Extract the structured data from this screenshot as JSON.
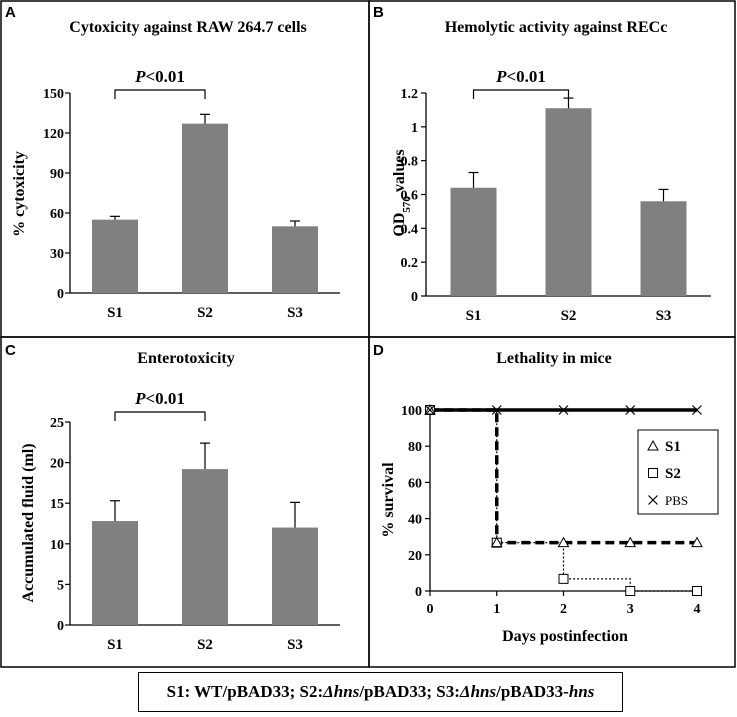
{
  "colors": {
    "bar": "#808080",
    "axis": "#000000",
    "border": "#000000"
  },
  "panel_letters": {
    "a": "A",
    "b": "B",
    "c": "C",
    "d": "D"
  },
  "significance": {
    "italic": "P",
    "text": "<0.01"
  },
  "caption": {
    "s1": "S1: WT/pBAD33; S2: ",
    "d1": "Δhns",
    "s2": "/pBAD33; S3: ",
    "d2": "Δhns",
    "s3": "/pBAD33-",
    "d3": "hns"
  },
  "chart_data": [
    {
      "id": "a",
      "type": "bar",
      "title": "Cytoxicity against RAW 264.7 cells",
      "xlabel": "",
      "ylabel": "% cytoxicity",
      "categories": [
        "S1",
        "S2",
        "S3"
      ],
      "values": [
        55,
        127,
        50
      ],
      "errors": [
        2.5,
        7,
        4
      ],
      "ylim": [
        0,
        150
      ],
      "yticks": [
        0,
        30,
        60,
        90,
        120,
        150
      ],
      "ytick_labels": [
        "0",
        "30",
        "60",
        "90",
        "120",
        "150"
      ],
      "significance": {
        "between": [
          "S1",
          "S2"
        ],
        "label": "P<0.01"
      }
    },
    {
      "id": "b",
      "type": "bar",
      "title": "Hemolytic activity against RECc",
      "xlabel": "",
      "ylabel": "OD570 values",
      "ylabel_parts": {
        "main": "OD",
        "sub": "570",
        "rest": " values"
      },
      "categories": [
        "S1",
        "S2",
        "S3"
      ],
      "values": [
        0.64,
        1.11,
        0.56
      ],
      "errors": [
        0.09,
        0.06,
        0.07
      ],
      "ylim": [
        0,
        1.2
      ],
      "yticks": [
        0,
        0.2,
        0.4,
        0.6,
        0.8,
        1.0,
        1.2
      ],
      "ytick_labels": [
        "0",
        "0.2",
        "0.4",
        "0.6",
        "0.8",
        "1",
        "1.2"
      ],
      "significance": {
        "between": [
          "S1",
          "S2"
        ],
        "label": "P<0.01"
      }
    },
    {
      "id": "c",
      "type": "bar",
      "title": "Enterotoxicity",
      "xlabel": "",
      "ylabel": "Accumulated fluid (ml)",
      "categories": [
        "S1",
        "S2",
        "S3"
      ],
      "values": [
        12.8,
        19.2,
        12.0
      ],
      "errors": [
        2.5,
        3.2,
        3.1
      ],
      "ylim": [
        0,
        25
      ],
      "yticks": [
        0,
        5,
        10,
        15,
        20,
        25
      ],
      "ytick_labels": [
        "0",
        "5",
        "10",
        "15",
        "20",
        "25"
      ],
      "significance": {
        "between": [
          "S1",
          "S2"
        ],
        "label": "P<0.01"
      }
    },
    {
      "id": "d",
      "type": "line",
      "title": "Lethality in mice",
      "xlabel": "Days postinfection",
      "ylabel": "% survival",
      "xlim": [
        0,
        4
      ],
      "ylim": [
        0,
        100
      ],
      "xticks": [
        0,
        1,
        2,
        3,
        4
      ],
      "xtick_labels": [
        "0",
        "1",
        "2",
        "3",
        "4"
      ],
      "yticks": [
        0,
        20,
        40,
        60,
        80,
        100
      ],
      "ytick_labels": [
        "0",
        "20",
        "40",
        "60",
        "80",
        "100"
      ],
      "legend_position": "right",
      "series": [
        {
          "name": "S1",
          "marker": "triangle",
          "line": "dashed-thick",
          "x": [
            0,
            1,
            2,
            3,
            4
          ],
          "y": [
            100,
            26.7,
            26.7,
            26.7,
            26.7
          ]
        },
        {
          "name": "S2",
          "marker": "square",
          "line": "dotted",
          "x": [
            0,
            1,
            2,
            3,
            4
          ],
          "y": [
            100,
            26.7,
            6.7,
            0,
            0
          ]
        },
        {
          "name": "PBS",
          "marker": "x",
          "line": "solid-thick",
          "x": [
            0,
            1,
            2,
            3,
            4
          ],
          "y": [
            100,
            100,
            100,
            100,
            100
          ]
        }
      ]
    }
  ]
}
